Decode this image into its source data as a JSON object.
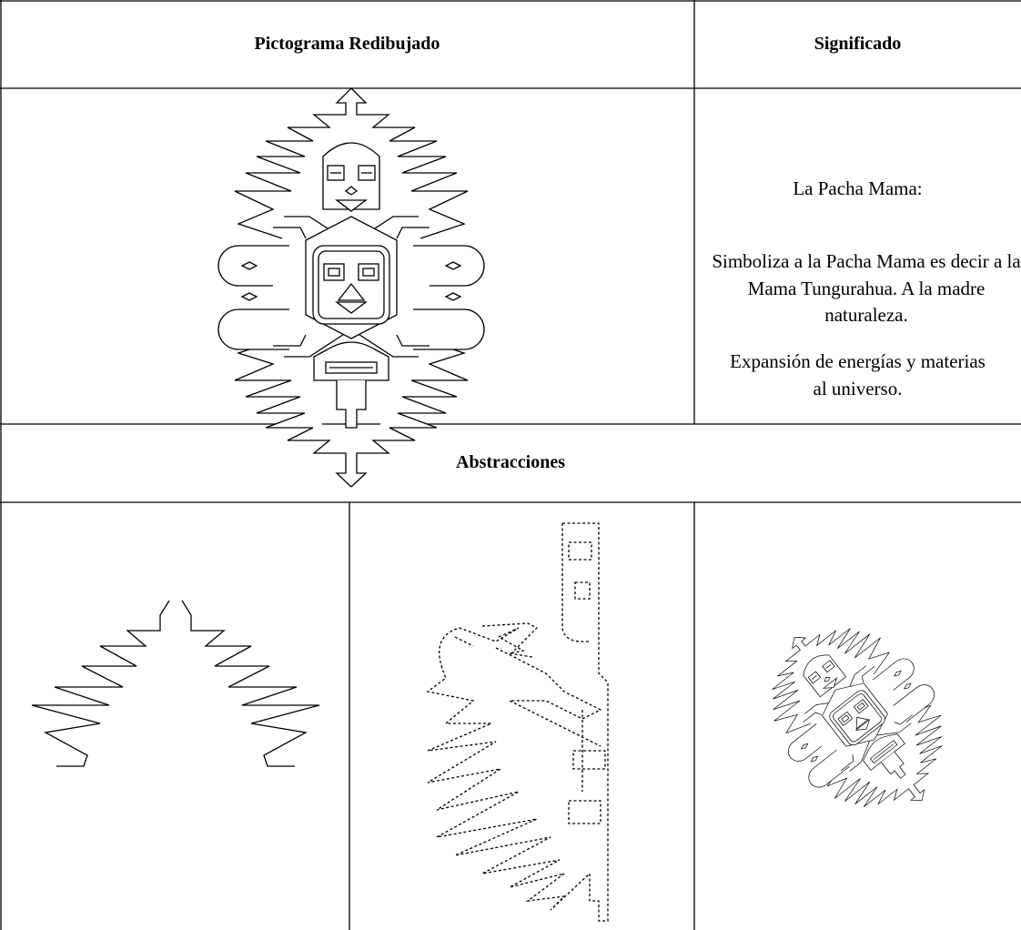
{
  "table": {
    "headers": [
      "Pictograma Redibujado",
      "Significado"
    ],
    "meaning": {
      "title": "La Pacha Mama:",
      "paragraphs": [
        "Simboliza a la Pacha Mama es decir a la Mama Tungurahua. A la madre naturaleza.",
        "Expansión de energías y materias al universo."
      ]
    },
    "section_title": "Abstracciones"
  }
}
